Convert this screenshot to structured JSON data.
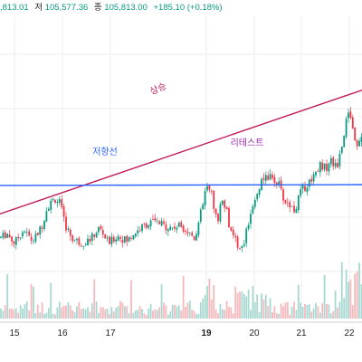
{
  "header": {
    "high_value": ",813.01",
    "low_label": "저",
    "low_value": "105,577.36",
    "close_label": "종",
    "close_value": "105,813.00",
    "change": "+185.10 (+0.18%)",
    "value_color": "#089981"
  },
  "colors": {
    "up": "#089981",
    "down": "#f23645",
    "up_volume": "#a7d8d2",
    "down_volume": "#f5b8bd",
    "resistance_line": "#2962ff",
    "trend_line": "#c2185b",
    "retest_label": "#9c27b0",
    "grid": "#eeeeee"
  },
  "annotations": {
    "trend_label": "상승",
    "resistance_label": "저항선",
    "retest_label": "리테스트"
  },
  "chart_data": {
    "type": "candlestick",
    "x_ticks": [
      "15",
      "16",
      "17",
      "19",
      "20",
      "21",
      "22"
    ],
    "bold_ticks": [
      "19"
    ],
    "grid": true,
    "anchors": [
      [
        0,
        35
      ],
      [
        8,
        40
      ],
      [
        16,
        28
      ],
      [
        26,
        45
      ],
      [
        36,
        30
      ],
      [
        46,
        48
      ],
      [
        52,
        72
      ],
      [
        60,
        83
      ],
      [
        66,
        78
      ],
      [
        72,
        50
      ],
      [
        80,
        34
      ],
      [
        90,
        28
      ],
      [
        100,
        33
      ],
      [
        110,
        47
      ],
      [
        120,
        28
      ],
      [
        130,
        37
      ],
      [
        140,
        31
      ],
      [
        150,
        42
      ],
      [
        160,
        50
      ],
      [
        170,
        55
      ],
      [
        180,
        50
      ],
      [
        190,
        47
      ],
      [
        200,
        50
      ],
      [
        210,
        40
      ],
      [
        215,
        35
      ],
      [
        220,
        55
      ],
      [
        226,
        88
      ],
      [
        232,
        100
      ],
      [
        236,
        75
      ],
      [
        240,
        55
      ],
      [
        246,
        85
      ],
      [
        250,
        70
      ],
      [
        255,
        40
      ],
      [
        262,
        28
      ],
      [
        268,
        22
      ],
      [
        274,
        50
      ],
      [
        278,
        75
      ],
      [
        284,
        88
      ],
      [
        290,
        105
      ],
      [
        296,
        110
      ],
      [
        302,
        108
      ],
      [
        308,
        100
      ],
      [
        314,
        80
      ],
      [
        320,
        75
      ],
      [
        326,
        68
      ],
      [
        332,
        92
      ],
      [
        340,
        100
      ],
      [
        348,
        115
      ],
      [
        354,
        125
      ],
      [
        360,
        120
      ],
      [
        366,
        130
      ],
      [
        372,
        120
      ],
      [
        378,
        150
      ],
      [
        382,
        175
      ],
      [
        386,
        190
      ],
      [
        390,
        168
      ],
      [
        394,
        150
      ],
      [
        400,
        160
      ]
    ],
    "resistance": {
      "start": 99,
      "end": 100
    },
    "trend": {
      "start": 64,
      "end": 216
    },
    "volume_scale": 1
  }
}
